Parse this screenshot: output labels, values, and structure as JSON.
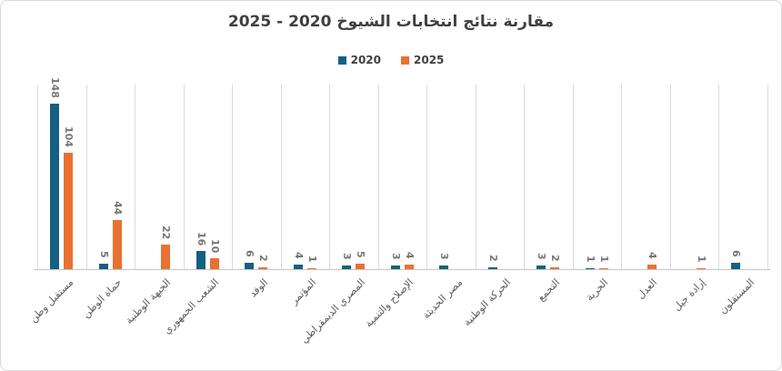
{
  "title": "مقارنة نتائج انتخابات الشيوخ 2020 - 2025",
  "legend": [
    {
      "label": "2020",
      "color": "#156082"
    },
    {
      "label": "2025",
      "color": "#E97132"
    }
  ],
  "colors": {
    "series_2020": "#156082",
    "series_2025": "#E97132",
    "title_text": "#3F3F3F",
    "data_label": "#767676",
    "axis_label": "#595959",
    "gridline": "#DBDBDB",
    "axis_line": "#C6C6C6",
    "frame_border": "#D9D9D9"
  },
  "chart_data": {
    "type": "bar",
    "title": "مقارنة نتائج انتخابات الشيوخ 2020 - 2025",
    "categories": [
      "مستقبل وطن",
      "حماة الوطن",
      "الجبهة الوطنية",
      "الشعب الجمهوري",
      "الوفد",
      "المؤتمر",
      "المصري الديمقراطي",
      "الإصلاح والتنمية",
      "مصر الحديثة",
      "الحركة الوطنية",
      "التجمع",
      "الحرية",
      "العدل",
      "إرادة جيل",
      "المستقلون"
    ],
    "series": [
      {
        "name": "2020",
        "color": "#156082",
        "values": [
          148,
          5,
          null,
          16,
          6,
          4,
          3,
          3,
          3,
          2,
          3,
          1,
          null,
          null,
          6
        ]
      },
      {
        "name": "2025",
        "color": "#E97132",
        "values": [
          104,
          44,
          22,
          10,
          2,
          1,
          5,
          4,
          null,
          null,
          2,
          1,
          4,
          1,
          null
        ]
      }
    ],
    "xlabel": "",
    "ylabel": "",
    "ylim": [
      0,
      165
    ],
    "y_axis_visible": false,
    "grid": "vertical-category-boundaries",
    "data_labels": "rotated-vertical-above-bars",
    "legend_position": "top-center",
    "category_label_rotation_deg": -45
  }
}
